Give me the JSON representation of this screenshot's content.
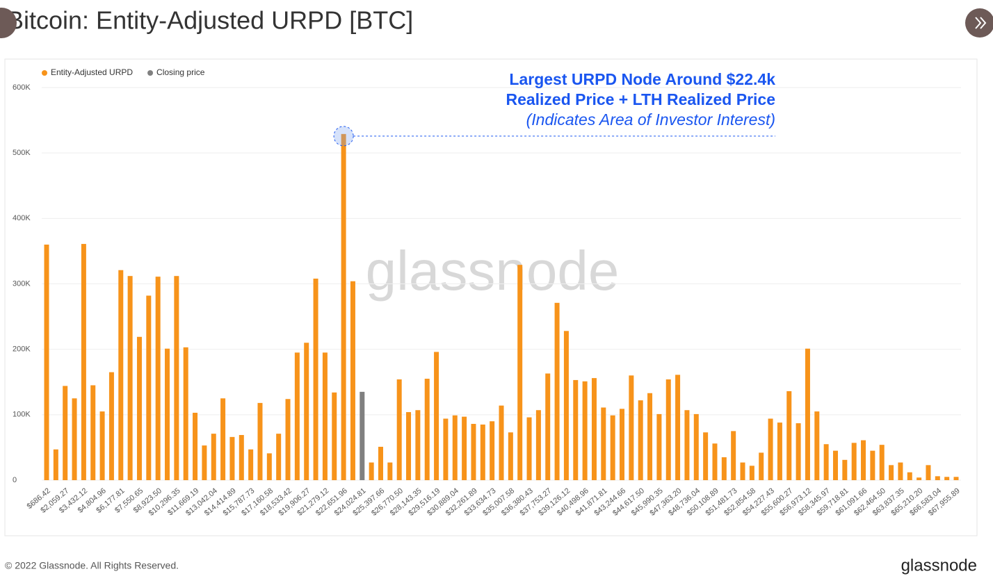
{
  "chart_data": {
    "type": "bar",
    "title": "Bitcoin: Entity-Adjusted URPD [BTC]",
    "annotation": [
      "Largest URPD Node Around $22.4k",
      "Realized Price + LTH Realized Price",
      "(Indicates Area of Investor Interest)"
    ],
    "watermark": "glassnode",
    "footer": "© 2022 Glassnode. All Rights Reserved.",
    "logo": "glassnode",
    "categories": [
      "$686.42",
      null,
      "$2,059.27",
      null,
      "$3,432.12",
      null,
      "$4,804.96",
      null,
      "$6,177.81",
      null,
      "$7,550.65",
      null,
      "$8,923.50",
      null,
      "$10,296.35",
      null,
      "$11,669.19",
      null,
      "$13,042.04",
      null,
      "$14,414.89",
      null,
      "$15,787.73",
      null,
      "$17,160.58",
      null,
      "$18,533.42",
      null,
      "$19,906.27",
      null,
      "$21,279.12",
      null,
      "$22,651.96",
      null,
      "$24,024.81",
      null,
      "$25,397.66",
      null,
      "$26,770.50",
      null,
      "$28,143.35",
      null,
      "$29,516.19",
      null,
      "$30,889.04",
      null,
      "$32,261.89",
      null,
      "$33,634.73",
      null,
      "$35,007.58",
      null,
      "$36,380.43",
      null,
      "$37,753.27",
      null,
      "$39,126.12",
      null,
      "$40,498.96",
      null,
      "$41,871.81",
      null,
      "$43,244.66",
      null,
      "$44,617.50",
      null,
      "$45,990.35",
      null,
      "$47,363.20",
      null,
      "$48,736.04",
      null,
      "$50,108.89",
      null,
      "$51,481.73",
      null,
      "$52,854.58",
      null,
      "$54,227.43",
      null,
      "$55,600.27",
      null,
      "$56,973.12",
      null,
      "$58,345.97",
      null,
      "$59,718.81",
      null,
      "$61,091.66",
      null,
      "$62,464.50",
      null,
      "$63,837.35",
      null,
      "$65,210.20",
      null,
      "$66,583.04",
      null,
      "$67,955.89"
    ],
    "series": [
      {
        "name": "Entity-Adjusted URPD",
        "color": "#f7931a",
        "values": [
          360000,
          47000,
          144000,
          125000,
          361000,
          145000,
          105000,
          165000,
          321000,
          312000,
          219000,
          282000,
          311000,
          201000,
          312000,
          203000,
          103000,
          53000,
          71000,
          125000,
          66000,
          69000,
          47000,
          118000,
          41000,
          71000,
          124000,
          195000,
          210000,
          308000,
          195000,
          134000,
          529000,
          304000,
          null,
          27000,
          51000,
          27000,
          154000,
          104000,
          107000,
          155000,
          196000,
          94000,
          99000,
          97000,
          86000,
          85000,
          90000,
          114000,
          73000,
          329000,
          96000,
          107000,
          163000,
          271000,
          228000,
          153000,
          151000,
          156000,
          111000,
          99000,
          109000,
          160000,
          122000,
          133000,
          101000,
          154000,
          161000,
          107000,
          101000,
          73000,
          56000,
          35000,
          75000,
          27000,
          22000,
          42000,
          94000,
          88000,
          136000,
          87000,
          201000,
          105000,
          55000,
          45000,
          31000,
          57000,
          61000,
          45000,
          54000,
          23000,
          27000,
          12000,
          4000,
          23000,
          6000,
          5000,
          5000
        ]
      },
      {
        "name": "Closing price",
        "color": "#808080",
        "values": [
          null,
          null,
          null,
          null,
          null,
          null,
          null,
          null,
          null,
          null,
          null,
          null,
          null,
          null,
          null,
          null,
          null,
          null,
          null,
          null,
          null,
          null,
          null,
          null,
          null,
          null,
          null,
          null,
          null,
          null,
          null,
          null,
          null,
          null,
          135000,
          null,
          null,
          null,
          null,
          null,
          null,
          null,
          null,
          null,
          null,
          null,
          null,
          null,
          null,
          null,
          null,
          null,
          null,
          null,
          null,
          null,
          null,
          null,
          null,
          null,
          null,
          null,
          null,
          null,
          null,
          null,
          null,
          null,
          null,
          null,
          null,
          null,
          null,
          null,
          null,
          null,
          null,
          null,
          null,
          null,
          null,
          null,
          null,
          null,
          null,
          null,
          null,
          null,
          null,
          null,
          null,
          null,
          null,
          null,
          null,
          null,
          null,
          null,
          null
        ]
      }
    ],
    "ylim": [
      0,
      600000
    ],
    "yticks": [
      0,
      {
        "value": 100000,
        "label": "100K"
      },
      {
        "value": 200000,
        "label": "200K"
      },
      {
        "value": 300000,
        "label": "300K"
      },
      {
        "value": 400000,
        "label": "400K"
      },
      {
        "value": 500000,
        "label": "500K"
      },
      {
        "value": 600000,
        "label": "600K"
      }
    ],
    "grid": true,
    "legend": "top-left"
  }
}
